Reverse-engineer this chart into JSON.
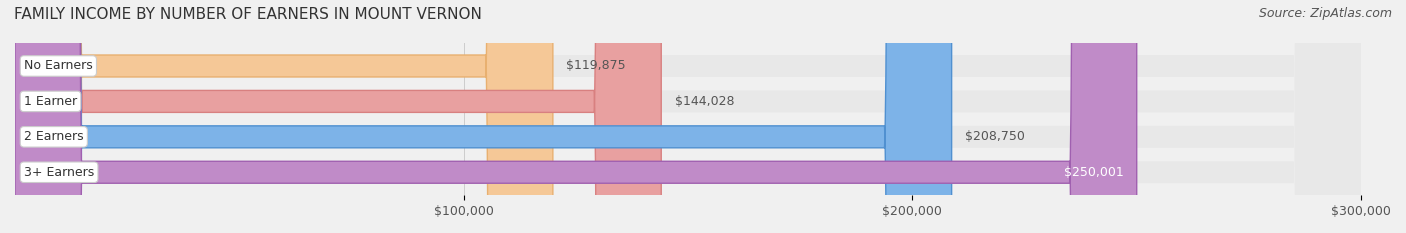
{
  "title": "FAMILY INCOME BY NUMBER OF EARNERS IN MOUNT VERNON",
  "source": "Source: ZipAtlas.com",
  "categories": [
    "No Earners",
    "1 Earner",
    "2 Earners",
    "3+ Earners"
  ],
  "values": [
    119875,
    144028,
    208750,
    250001
  ],
  "labels": [
    "$119,875",
    "$144,028",
    "$208,750",
    "$250,001"
  ],
  "bar_colors": [
    "#f5c897",
    "#e8a0a0",
    "#7db3e8",
    "#c08bc8"
  ],
  "bar_edge_colors": [
    "#e8b070",
    "#d88080",
    "#5090d0",
    "#a060b0"
  ],
  "label_colors": [
    "#555555",
    "#555555",
    "#555555",
    "#ffffff"
  ],
  "bg_color": "#f0f0f0",
  "bar_bg_color": "#e8e8e8",
  "xmin": 0,
  "xmax": 300000,
  "xticks": [
    100000,
    200000,
    300000
  ],
  "xticklabels": [
    "$100,000",
    "$200,000",
    "$300,000"
  ],
  "title_fontsize": 11,
  "source_fontsize": 9,
  "tick_fontsize": 9,
  "bar_label_fontsize": 9,
  "category_fontsize": 9,
  "bar_height": 0.62,
  "figsize": [
    14.06,
    2.33
  ],
  "dpi": 100
}
